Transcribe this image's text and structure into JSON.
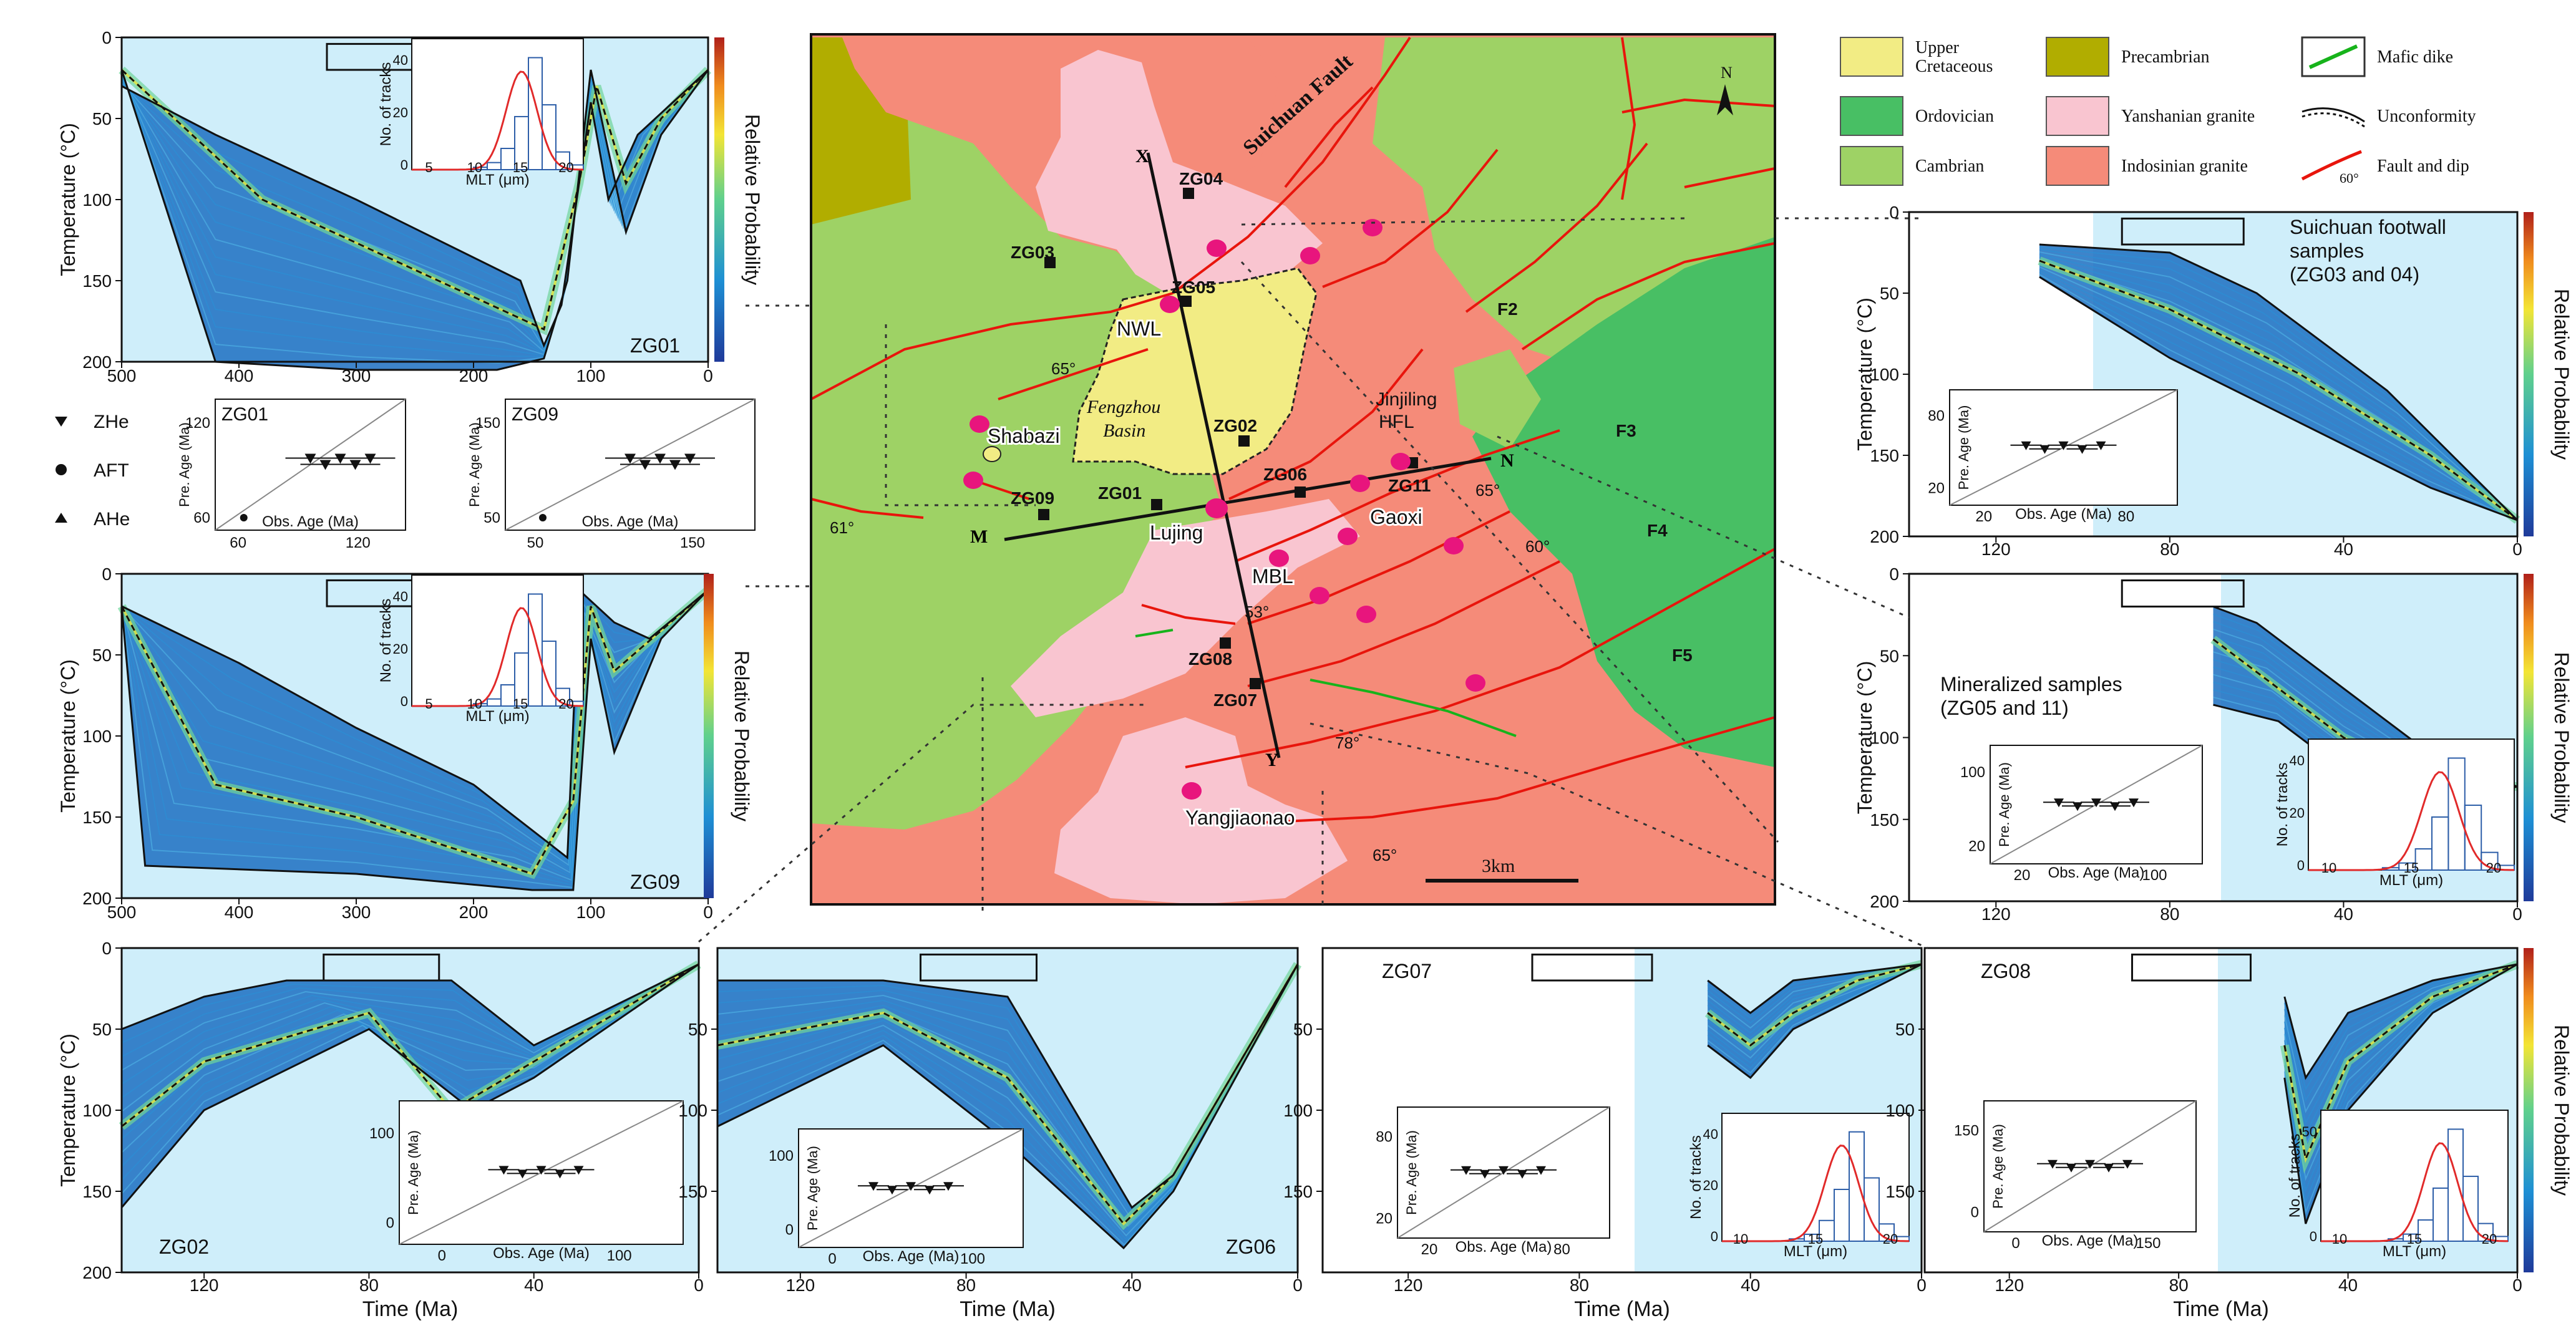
{
  "panels": [
    {
      "id": "ZG01",
      "y_label": "Temperature (°C)",
      "x_label": "",
      "y_ticks": [
        "0",
        "50",
        "100",
        "150",
        "200"
      ],
      "x_ticks": [
        "500",
        "400",
        "300",
        "200",
        "100",
        "0"
      ],
      "colorbar_label": "Relative Probability",
      "hist": {
        "y_label": "No. of tracks",
        "x_label": "MLT (μm)",
        "y_ticks": [
          "0",
          "20",
          "40"
        ],
        "x_ticks": [
          "5",
          "10",
          "15",
          "20"
        ]
      }
    },
    {
      "id": "ZG09",
      "y_label": "Temperature (°C)",
      "x_label": "",
      "y_ticks": [
        "0",
        "50",
        "100",
        "150",
        "200"
      ],
      "x_ticks": [
        "500",
        "400",
        "300",
        "200",
        "100",
        "0"
      ],
      "colorbar_label": "Relative Probability",
      "hist": {
        "y_label": "No. of tracks",
        "x_label": "MLT (μm)",
        "y_ticks": [
          "0",
          "20",
          "40"
        ],
        "x_ticks": [
          "5",
          "10",
          "15",
          "20"
        ]
      }
    },
    {
      "id": "ZG03 ZG04",
      "title": "Suichuan footwall samples (ZG03 and 04)",
      "title_lines": [
        "Suichuan footwall",
        "samples",
        "(ZG03 and 04)"
      ],
      "y_label": "Temperature (°C)",
      "x_label": "",
      "y_ticks": [
        "0",
        "50",
        "100",
        "150",
        "200"
      ],
      "x_ticks": [
        "120",
        "80",
        "40",
        "0"
      ],
      "colorbar_label": "Relative Probability",
      "inset": {
        "y_label": "Pre. Age (Ma)",
        "x_label": "Obs. Age (Ma)",
        "y_ticks": [
          "20",
          "80"
        ],
        "x_ticks": [
          "20",
          "80"
        ]
      }
    },
    {
      "id": "ZG05 ZG11",
      "title": "Mineralized samples (ZG05 and 11)",
      "title_lines": [
        "Mineralized samples",
        "(ZG05 and 11)"
      ],
      "y_label": "Temperature (°C)",
      "x_label": "",
      "y_ticks": [
        "0",
        "50",
        "100",
        "150",
        "200"
      ],
      "x_ticks": [
        "120",
        "80",
        "40",
        "0"
      ],
      "colorbar_label": "Relative Probability",
      "inset": {
        "y_label": "Pre. Age (Ma)",
        "x_label": "Obs. Age (Ma)",
        "y_ticks": [
          "20",
          "100"
        ],
        "x_ticks": [
          "20",
          "100"
        ]
      },
      "hist": {
        "y_label": "No. of tracks",
        "x_label": "MLT (μm)",
        "y_ticks": [
          "0",
          "20",
          "40"
        ],
        "x_ticks": [
          "10",
          "15",
          "20"
        ]
      }
    },
    {
      "id": "ZG02",
      "y_label": "Temperature (°C)",
      "x_label": "Time (Ma)",
      "y_ticks": [
        "0",
        "50",
        "100",
        "150",
        "200"
      ],
      "x_ticks": [
        "120",
        "80",
        "40",
        "0"
      ],
      "inset": {
        "y_label": "Pre. Age (Ma)",
        "x_label": "Obs. Age (Ma)",
        "y_ticks": [
          "0",
          "100"
        ],
        "x_ticks": [
          "0",
          "100"
        ]
      }
    },
    {
      "id": "ZG06",
      "y_label": "",
      "x_label": "Time (Ma)",
      "y_ticks": [
        "50",
        "100",
        "150"
      ],
      "x_ticks": [
        "120",
        "80",
        "40",
        "0"
      ],
      "inset": {
        "y_label": "Pre. Age (Ma)",
        "x_label": "Obs. Age (Ma)",
        "y_ticks": [
          "0",
          "100"
        ],
        "x_ticks": [
          "0",
          "100"
        ]
      }
    },
    {
      "id": "ZG07",
      "y_label": "",
      "x_label": "Time (Ma)",
      "y_ticks": [
        "50",
        "100",
        "150"
      ],
      "x_ticks": [
        "120",
        "80",
        "40",
        "0"
      ],
      "inset": {
        "y_label": "Pre. Age (Ma)",
        "x_label": "Obs. Age (Ma)",
        "y_ticks": [
          "20",
          "80"
        ],
        "x_ticks": [
          "20",
          "80"
        ]
      },
      "hist": {
        "y_label": "No. of tracks",
        "x_label": "MLT (μm)",
        "y_ticks": [
          "0",
          "20",
          "40"
        ],
        "x_ticks": [
          "10",
          "15",
          "20"
        ]
      }
    },
    {
      "id": "ZG08",
      "y_label": "",
      "x_label": "Time (Ma)",
      "y_ticks": [
        "50",
        "100",
        "150"
      ],
      "x_ticks": [
        "120",
        "80",
        "40",
        "0"
      ],
      "colorbar_label": "Relative Probability",
      "inset": {
        "y_label": "Pre. Age (Ma)",
        "x_label": "Obs. Age (Ma)",
        "y_ticks": [
          "0",
          "150"
        ],
        "x_ticks": [
          "0",
          "150"
        ]
      },
      "hist": {
        "y_label": "No. of tracks",
        "x_label": "MLT (μm)",
        "y_ticks": [
          "0",
          "50"
        ],
        "x_ticks": [
          "10",
          "15",
          "20"
        ]
      }
    }
  ],
  "age_plots": [
    {
      "id": "ZG01",
      "y_label": "Pre. Age (Ma)",
      "x_label": "Obs. Age (Ma)",
      "y_ticks": [
        "60",
        "120"
      ],
      "x_ticks": [
        "60",
        "120"
      ]
    },
    {
      "id": "ZG09",
      "y_label": "Pre. Age (Ma)",
      "x_label": "Obs. Age (Ma)",
      "y_ticks": [
        "50",
        "150"
      ],
      "x_ticks": [
        "50",
        "150"
      ]
    }
  ],
  "symbol_legend": [
    "ZHe",
    "AFT",
    "AHe"
  ],
  "map": {
    "north": "N",
    "scale": "3km",
    "fault_name": "Suichuan Fault",
    "basin_name": [
      "Fengzhou",
      "Basin"
    ],
    "samples": [
      "ZG01",
      "ZG02",
      "ZG03",
      "ZG04",
      "ZG05",
      "ZG06",
      "ZG07",
      "ZG08",
      "ZG09",
      "ZG11"
    ],
    "places": [
      "Shabazi",
      "Lujing",
      "Gaoxi",
      "MBL",
      "Yangjiaonao"
    ],
    "labels": [
      "NWL",
      "Jinjiling",
      "HFL",
      "X",
      "Y",
      "M",
      "N",
      "F2",
      "F3",
      "F4",
      "F5"
    ],
    "dips": [
      "65°",
      "61°",
      "65°",
      "60°",
      "53°",
      "78°",
      "65°"
    ]
  },
  "legend": [
    {
      "label_lines": [
        "Upper",
        "Cretaceous"
      ],
      "color": "#f2ec84"
    },
    {
      "label_lines": [
        "Precambrian"
      ],
      "color": "#b1ad00"
    },
    {
      "label_lines": [
        "Mafic dike"
      ],
      "symbol": "dike"
    },
    {
      "label_lines": [
        "Ordovician"
      ],
      "color": "#48bf64"
    },
    {
      "label_lines": [
        "Yanshanian granite"
      ],
      "color": "#f9c5d0"
    },
    {
      "label_lines": [
        "Unconformity"
      ],
      "symbol": "unconformity"
    },
    {
      "label_lines": [
        "Cambrian"
      ],
      "color": "#9ed265"
    },
    {
      "label_lines": [
        "Indosinian granite"
      ],
      "color": "#f58b79"
    },
    {
      "label_lines": [
        "Fault and dip"
      ],
      "symbol": "fault",
      "dip": "60°"
    }
  ],
  "colors": {
    "fault": "#e8150c",
    "dike": "#17b31b",
    "sample": "#e8157d",
    "map_bg": "#f58b79"
  }
}
